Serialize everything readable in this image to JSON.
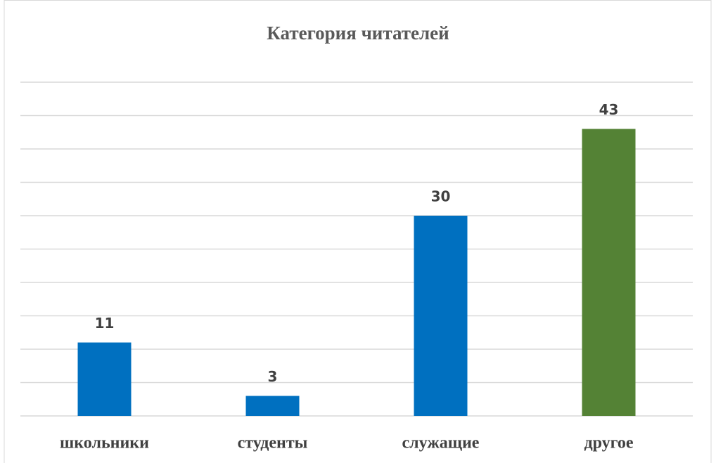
{
  "chart_data": {
    "type": "bar",
    "title": "Категория читателей",
    "categories": [
      "школьники",
      "студенты",
      "служащие",
      "другое"
    ],
    "values": [
      11,
      3,
      30,
      43
    ],
    "colors": [
      "#0070c0",
      "#0070c0",
      "#0070c0",
      "#548235"
    ],
    "ylim": [
      0,
      50
    ],
    "yticks": [
      0,
      5,
      10,
      15,
      20,
      25,
      30,
      35,
      40,
      45,
      50
    ],
    "grid": true
  }
}
